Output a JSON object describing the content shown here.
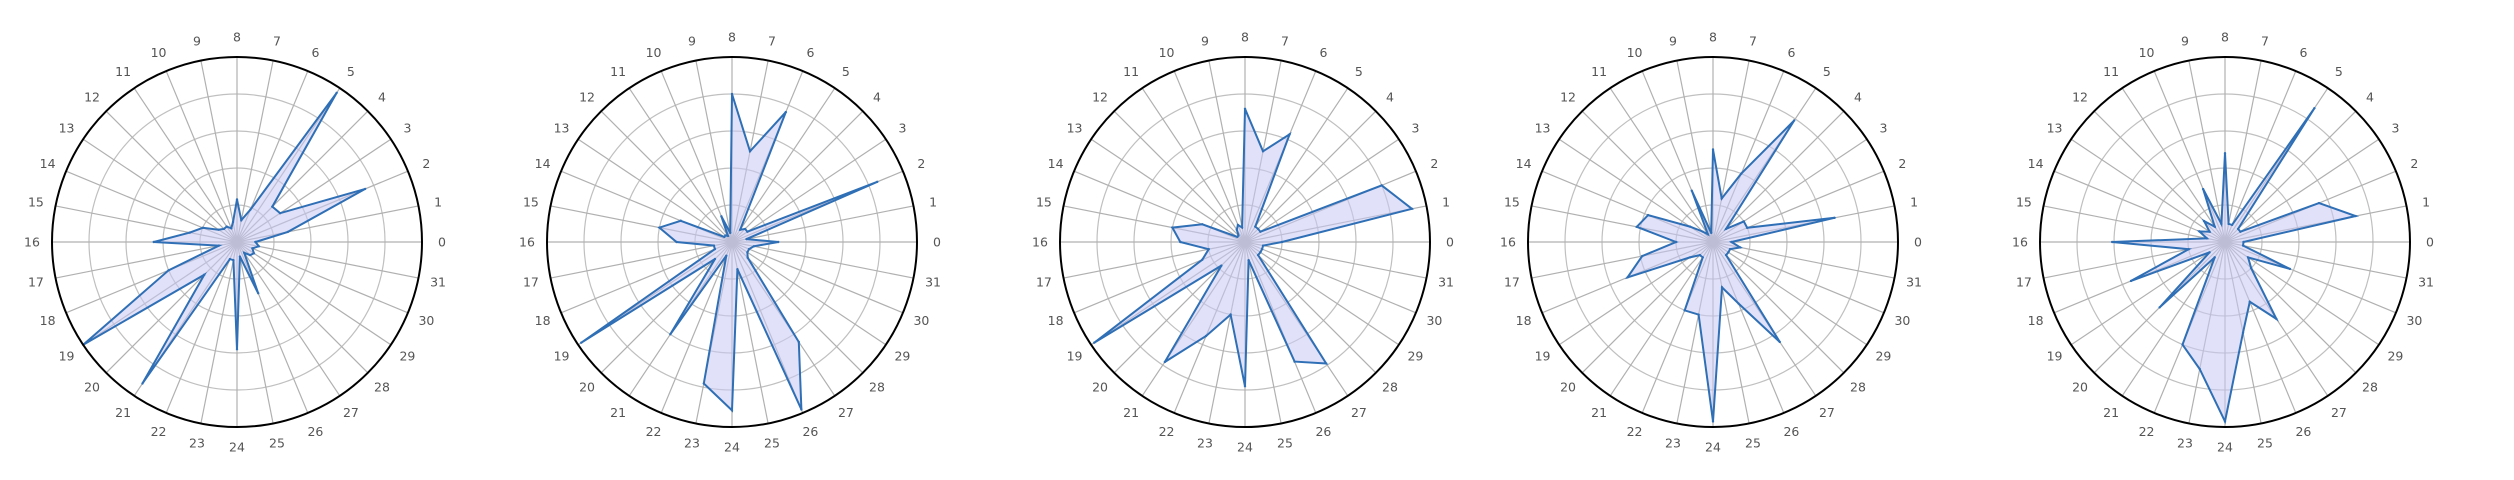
{
  "colors": {
    "line": "#2f6fb5",
    "fill": "#c9c8f4",
    "grid": "#c0c0c0",
    "outer": "#000000",
    "text": "#555555"
  },
  "chart_data": [
    {
      "type": "radar",
      "categories": [
        "0",
        "1",
        "2",
        "3",
        "4",
        "5",
        "6",
        "7",
        "8",
        "9",
        "10",
        "11",
        "12",
        "13",
        "14",
        "15",
        "16",
        "17",
        "18",
        "19",
        "20",
        "21",
        "22",
        "23",
        "24",
        "25",
        "26",
        "27",
        "28",
        "29",
        "30",
        "31"
      ],
      "values": [
        0.1,
        0.28,
        0.75,
        0.28,
        0.27,
        0.97,
        0.19,
        0.12,
        0.23,
        0.11,
        0.08,
        0.1,
        0.1,
        0.12,
        0.2,
        0.26,
        0.45,
        0.1,
        0.4,
        1.0,
        0.25,
        0.92,
        0.1,
        0.1,
        0.58,
        0.08,
        0.3,
        0.07,
        0.1,
        0.11,
        0.09,
        0.12
      ],
      "rlim": [
        0,
        1.0
      ],
      "grid": true
    },
    {
      "type": "radar",
      "categories": [
        "0",
        "1",
        "2",
        "3",
        "4",
        "5",
        "6",
        "7",
        "8",
        "9",
        "10",
        "11",
        "12",
        "13",
        "14",
        "15",
        "16",
        "17",
        "18",
        "19",
        "20",
        "21",
        "22",
        "23",
        "24",
        "25",
        "26",
        "27",
        "28",
        "29",
        "30",
        "31"
      ],
      "values": [
        0.25,
        0.08,
        0.85,
        0.1,
        0.1,
        0.08,
        0.76,
        0.5,
        0.8,
        0.05,
        0.15,
        0.04,
        0.05,
        0.05,
        0.3,
        0.4,
        0.3,
        0.1,
        0.1,
        0.98,
        0.13,
        0.6,
        0.08,
        0.78,
        0.91,
        0.15,
        0.98,
        0.65,
        0.12,
        0.1,
        0.1,
        0.12
      ],
      "rlim": [
        0,
        1.0
      ],
      "grid": true
    },
    {
      "type": "radar",
      "categories": [
        "0",
        "1",
        "2",
        "3",
        "4",
        "5",
        "6",
        "7",
        "8",
        "9",
        "10",
        "11",
        "12",
        "13",
        "14",
        "15",
        "16",
        "17",
        "18",
        "19",
        "20",
        "21",
        "22",
        "23",
        "24",
        "25",
        "26",
        "27",
        "28",
        "29",
        "30",
        "31"
      ],
      "values": [
        0.2,
        0.92,
        0.8,
        0.1,
        0.1,
        0.1,
        0.63,
        0.5,
        0.72,
        0.08,
        0.1,
        0.08,
        0.05,
        0.05,
        0.25,
        0.4,
        0.35,
        0.2,
        0.25,
        0.98,
        0.18,
        0.78,
        0.55,
        0.4,
        0.78,
        0.1,
        0.7,
        0.79,
        0.1,
        0.1,
        0.1,
        0.1
      ],
      "rlim": [
        0,
        1.0
      ],
      "grid": true
    },
    {
      "type": "radar",
      "categories": [
        "0",
        "1",
        "2",
        "3",
        "4",
        "5",
        "6",
        "7",
        "8",
        "9",
        "10",
        "11",
        "12",
        "13",
        "14",
        "15",
        "16",
        "17",
        "18",
        "19",
        "20",
        "21",
        "22",
        "23",
        "24",
        "25",
        "26",
        "27",
        "28",
        "29",
        "30",
        "31"
      ],
      "values": [
        0.1,
        0.67,
        0.2,
        0.2,
        0.1,
        0.79,
        0.4,
        0.24,
        0.5,
        0.05,
        0.3,
        0.05,
        0.08,
        0.15,
        0.38,
        0.42,
        0.2,
        0.39,
        0.5,
        0.15,
        0.1,
        0.1,
        0.4,
        0.4,
        0.97,
        0.25,
        0.36,
        0.65,
        0.1,
        0.1,
        0.1,
        0.15
      ],
      "rlim": [
        0,
        1.0
      ],
      "grid": true
    },
    {
      "type": "radar",
      "categories": [
        "0",
        "1",
        "2",
        "3",
        "4",
        "5",
        "6",
        "7",
        "8",
        "9",
        "10",
        "11",
        "12",
        "13",
        "14",
        "15",
        "16",
        "17",
        "18",
        "19",
        "20",
        "21",
        "22",
        "23",
        "24",
        "25",
        "26",
        "27",
        "28",
        "29",
        "30",
        "31"
      ],
      "values": [
        0.1,
        0.72,
        0.55,
        0.1,
        0.1,
        0.87,
        0.1,
        0.1,
        0.48,
        0.1,
        0.31,
        0.1,
        0.16,
        0.1,
        0.15,
        0.1,
        0.61,
        0.2,
        0.55,
        0.1,
        0.5,
        0.1,
        0.6,
        0.7,
        0.97,
        0.5,
        0.35,
        0.5,
        0.2,
        0.15,
        0.38,
        0.1
      ],
      "rlim": [
        0,
        1.0
      ],
      "grid": true
    }
  ]
}
